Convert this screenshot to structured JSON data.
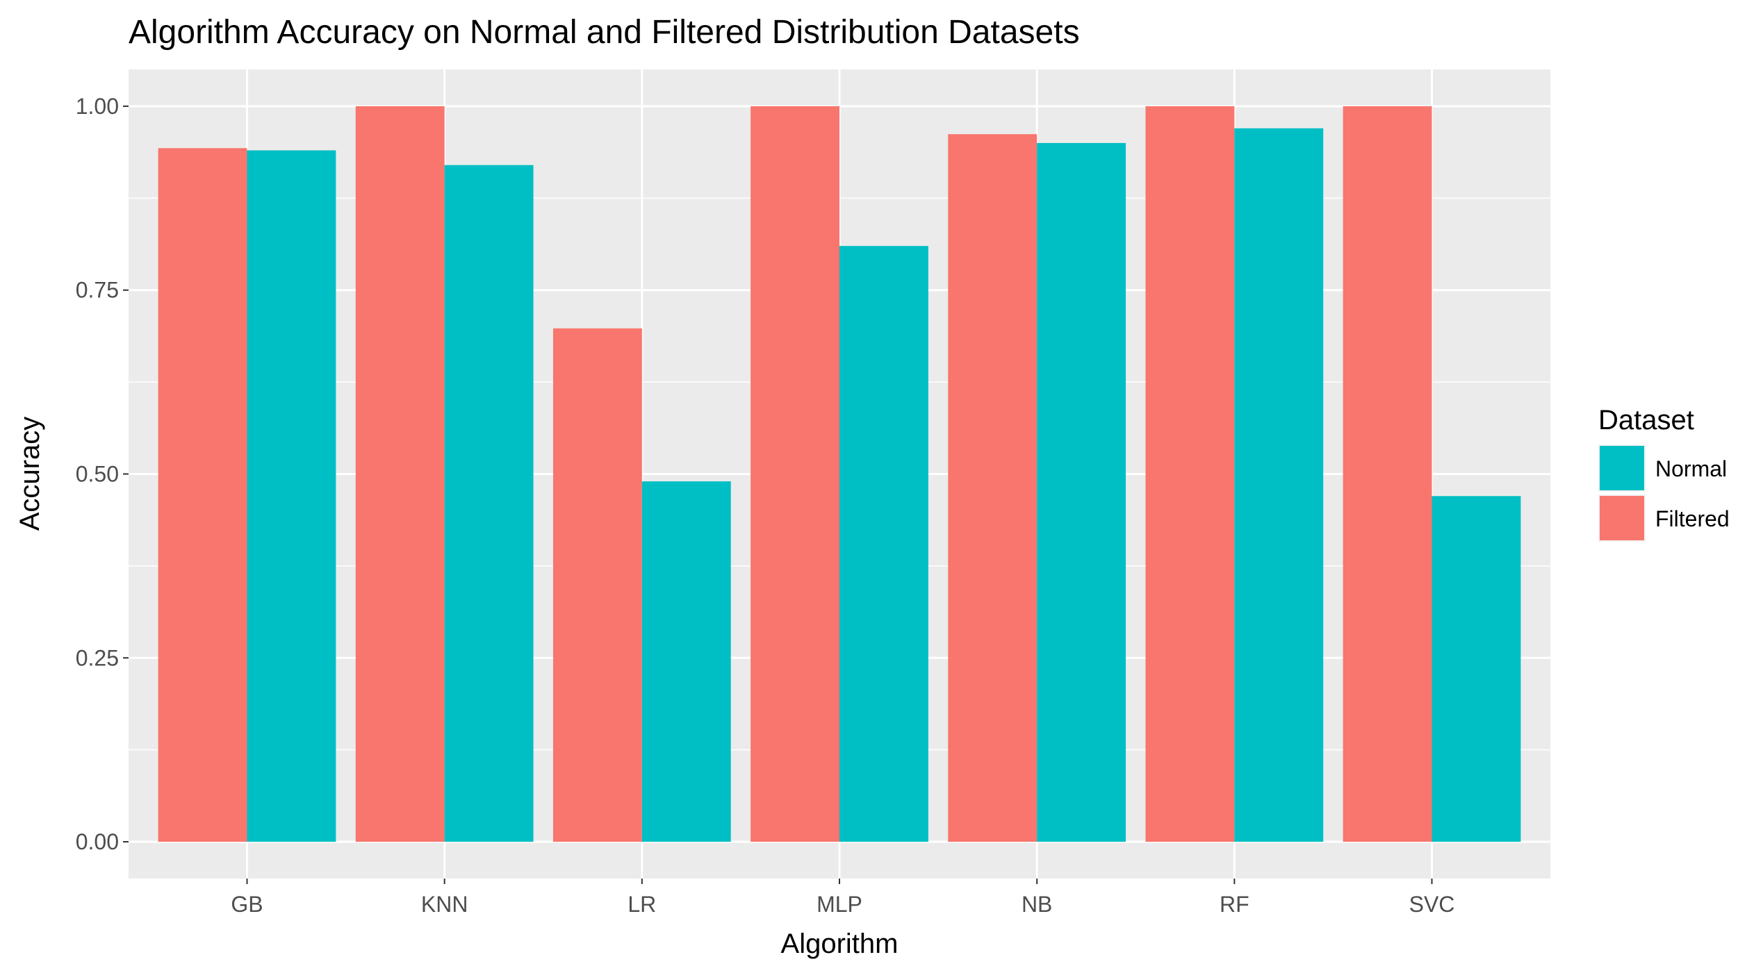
{
  "chart_data": {
    "type": "bar",
    "title": "Algorithm Accuracy on Normal and Filtered Distribution Datasets",
    "xlabel": "Algorithm",
    "ylabel": "Accuracy",
    "categories": [
      "GB",
      "KNN",
      "LR",
      "MLP",
      "NB",
      "RF",
      "SVC"
    ],
    "series": [
      {
        "name": "Filtered",
        "color": "#F8766D",
        "values": [
          0.943,
          1.0,
          0.698,
          1.0,
          0.962,
          1.0,
          1.0
        ]
      },
      {
        "name": "Normal",
        "color": "#00BFC4",
        "values": [
          0.94,
          0.92,
          0.49,
          0.81,
          0.95,
          0.97,
          0.47
        ]
      }
    ],
    "ylim": [
      -0.05,
      1.05
    ],
    "yticks": [
      0.0,
      0.25,
      0.5,
      0.75,
      1.0
    ],
    "ytick_labels": [
      "0.00",
      "0.25",
      "0.50",
      "0.75",
      "1.00"
    ],
    "grid": true,
    "legend": {
      "title": "Dataset",
      "placement": "right",
      "entries": [
        {
          "label": "Normal",
          "color": "#00BFC4"
        },
        {
          "label": "Filtered",
          "color": "#F8766D"
        }
      ]
    },
    "panel_background": "#EBEBEB",
    "grid_color": "#FFFFFF"
  }
}
